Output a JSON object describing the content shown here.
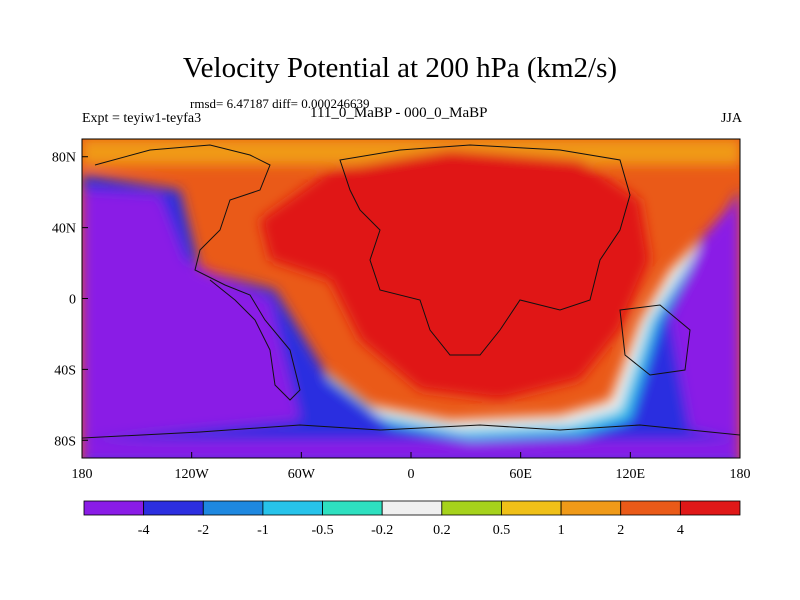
{
  "header": {
    "title": "Velocity Potential at 200 hPa (km2/s)",
    "stats": "rmsd= 6.47187 diff= 0.000246639",
    "left_label": "Expt = teyiw1-teyfa3",
    "center_label": "111_0_MaBP - 000_0_MaBP",
    "right_label": "JJA"
  },
  "axes": {
    "lon_ticks": [
      {
        "label": "180",
        "lon": -180
      },
      {
        "label": "120W",
        "lon": -120
      },
      {
        "label": "60W",
        "lon": -60
      },
      {
        "label": "0",
        "lon": 0
      },
      {
        "label": "60E",
        "lon": 60
      },
      {
        "label": "120E",
        "lon": 120
      },
      {
        "label": "180",
        "lon": 180
      }
    ],
    "lat_ticks": [
      {
        "label": "80N",
        "lat": 80
      },
      {
        "label": "40N",
        "lat": 40
      },
      {
        "label": "0",
        "lat": 0
      },
      {
        "label": "40S",
        "lat": -40
      },
      {
        "label": "80S",
        "lat": -80
      }
    ]
  },
  "colorbar": {
    "colors": [
      "#8a1ce6",
      "#2c2fe0",
      "#1e88e0",
      "#27c3ea",
      "#2ee0c0",
      "#f0f0f0",
      "#a6d21c",
      "#f0c018",
      "#f09a18",
      "#ea5a18",
      "#e01818"
    ],
    "labels": [
      "-4",
      "-2",
      "-1",
      "-0.5",
      "-0.2",
      "0.2",
      "0.5",
      "1",
      "2",
      "4"
    ]
  }
}
